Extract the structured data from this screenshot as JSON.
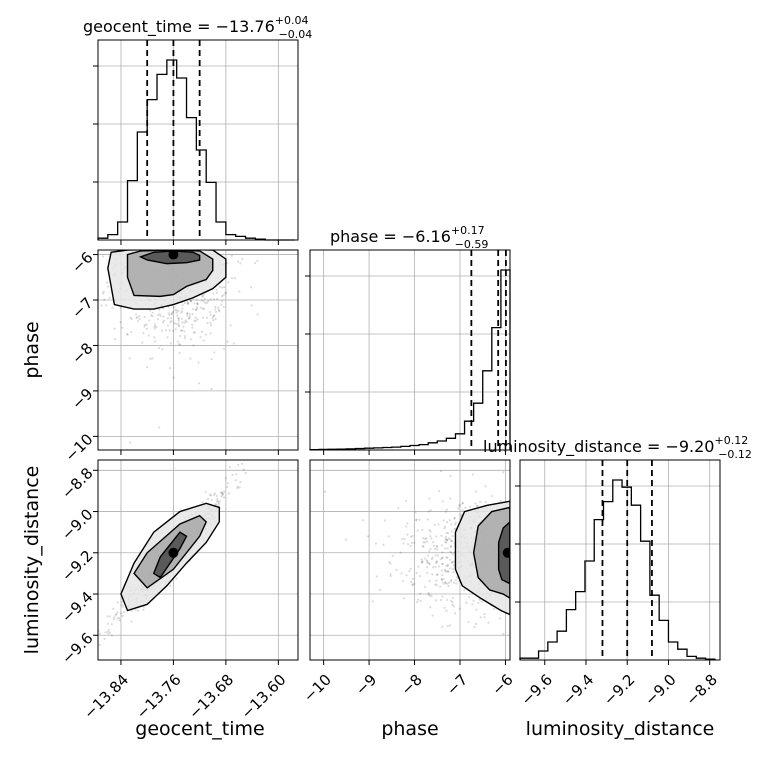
{
  "chart_data": {
    "type": "corner",
    "parameters": [
      "geocent_time",
      "phase",
      "luminosity_distance"
    ],
    "titles": [
      {
        "param": "geocent_time",
        "prefix": "geocent_time = ",
        "value": "−13.76",
        "plus": "+0.04",
        "minus": "−0.04"
      },
      {
        "param": "phase",
        "prefix": "phase = ",
        "value": "−6.16",
        "plus": "+0.17",
        "minus": "−0.59"
      },
      {
        "param": "luminosity_distance",
        "prefix": "luminosity_distance = ",
        "value": "−9.20",
        "plus": "+0.12",
        "minus": "−0.12"
      }
    ],
    "axes": {
      "geocent_time": {
        "lim": [
          -13.875,
          -13.57
        ],
        "ticks": [
          -13.84,
          -13.76,
          -13.68,
          -13.6
        ],
        "tick_labels": [
          "−13.84",
          "−13.76",
          "−13.68",
          "−13.60"
        ]
      },
      "phase": {
        "lim": [
          -10.3,
          -5.9
        ],
        "ticks": [
          -10,
          -9,
          -8,
          -7,
          -6
        ],
        "tick_labels": [
          "−10",
          "−9",
          "−8",
          "−7",
          "−6"
        ]
      },
      "luminosity_distance": {
        "lim": [
          -9.72,
          -8.75
        ],
        "ticks": [
          -9.6,
          -9.4,
          -9.2,
          -9.0,
          -8.8
        ],
        "tick_labels": [
          "−9.6",
          "−9.4",
          "−9.2",
          "−9.0",
          "−8.8"
        ]
      }
    },
    "histograms": {
      "geocent_time": {
        "edges": [
          -13.875,
          -13.86,
          -13.845,
          -13.83,
          -13.815,
          -13.8,
          -13.785,
          -13.77,
          -13.755,
          -13.74,
          -13.725,
          -13.71,
          -13.695,
          -13.68,
          -13.665,
          -13.65,
          -13.635,
          -13.62,
          -13.605,
          -13.59,
          -13.575
        ],
        "counts": [
          0.01,
          0.03,
          0.1,
          0.33,
          0.6,
          0.78,
          0.92,
          1.0,
          0.9,
          0.68,
          0.5,
          0.32,
          0.1,
          0.03,
          0.02,
          0.01,
          0.005,
          0,
          0,
          0
        ],
        "quantiles": [
          -13.8,
          -13.76,
          -13.72
        ]
      },
      "phase": {
        "edges": [
          -10.3,
          -10.1,
          -9.9,
          -9.7,
          -9.5,
          -9.3,
          -9.1,
          -8.9,
          -8.7,
          -8.5,
          -8.3,
          -8.1,
          -7.9,
          -7.7,
          -7.5,
          -7.3,
          -7.1,
          -6.9,
          -6.7,
          -6.5,
          -6.3,
          -6.1,
          -5.9
        ],
        "counts": [
          0.002,
          0.003,
          0.004,
          0.005,
          0.006,
          0.008,
          0.01,
          0.012,
          0.014,
          0.016,
          0.02,
          0.025,
          0.03,
          0.04,
          0.05,
          0.065,
          0.09,
          0.16,
          0.26,
          0.44,
          0.68,
          1.0
        ],
        "quantiles": [
          -6.75,
          -6.16,
          -5.99
        ]
      },
      "luminosity_distance": {
        "edges": [
          -9.72,
          -9.675,
          -9.63,
          -9.585,
          -9.54,
          -9.495,
          -9.45,
          -9.405,
          -9.36,
          -9.315,
          -9.27,
          -9.225,
          -9.18,
          -9.135,
          -9.09,
          -9.045,
          -9.0,
          -8.955,
          -8.91,
          -8.865,
          -8.82,
          -8.775
        ],
        "counts": [
          0.01,
          0.01,
          0.05,
          0.1,
          0.16,
          0.28,
          0.38,
          0.55,
          0.78,
          0.88,
          1.0,
          0.96,
          0.86,
          0.66,
          0.36,
          0.22,
          0.1,
          0.06,
          0.02,
          0.01,
          0.005
        ],
        "quantiles": [
          -9.32,
          -9.2,
          -9.08
        ]
      }
    },
    "contours_2d": {
      "geocent_time|phase": {
        "density_peak": [
          -13.76,
          -6.0
        ],
        "levels": [
          {
            "x": [
              -13.81,
              -13.8,
              -13.77,
              -13.74,
              -13.72,
              -13.72,
              -13.73,
              -13.76,
              -13.79,
              -13.81
            ],
            "y": [
              -6.05,
              -6.12,
              -6.2,
              -6.18,
              -6.12,
              -6.02,
              -5.95,
              -5.92,
              -5.95,
              -6.05
            ]
          },
          {
            "x": [
              -13.83,
              -13.83,
              -13.82,
              -13.78,
              -13.76,
              -13.74,
              -13.71,
              -13.7,
              -13.7,
              -13.72,
              -13.76,
              -13.81,
              -13.83
            ],
            "y": [
              -6.0,
              -6.5,
              -6.9,
              -6.92,
              -6.88,
              -6.7,
              -6.55,
              -6.35,
              -6.1,
              -5.92,
              -5.9,
              -5.92,
              -6.0
            ]
          },
          {
            "x": [
              -13.855,
              -13.86,
              -13.85,
              -13.82,
              -13.79,
              -13.76,
              -13.73,
              -13.7,
              -13.68,
              -13.68,
              -13.7,
              -13.76,
              -13.83,
              -13.855
            ],
            "y": [
              -5.95,
              -6.3,
              -7.1,
              -7.2,
              -7.2,
              -7.1,
              -6.95,
              -6.75,
              -6.5,
              -6.1,
              -5.9,
              -5.88,
              -5.9,
              -5.95
            ]
          }
        ]
      },
      "geocent_time|luminosity_distance": {
        "density_peak": [
          -13.76,
          -9.2
        ],
        "levels": [
          {
            "x": [
              -13.79,
              -13.78,
              -13.75,
              -13.74,
              -13.75,
              -13.78
            ],
            "y": [
              -9.3,
              -9.32,
              -9.18,
              -9.12,
              -9.1,
              -9.22
            ]
          },
          {
            "x": [
              -13.82,
              -13.8,
              -13.76,
              -13.72,
              -13.71,
              -13.72,
              -13.75,
              -13.8,
              -13.82
            ],
            "y": [
              -9.3,
              -9.37,
              -9.28,
              -9.12,
              -9.05,
              -9.02,
              -9.06,
              -9.2,
              -9.3
            ]
          },
          {
            "x": [
              -13.84,
              -13.83,
              -13.8,
              -13.77,
              -13.74,
              -13.71,
              -13.69,
              -13.69,
              -13.71,
              -13.75,
              -13.79,
              -13.82,
              -13.84
            ],
            "y": [
              -9.4,
              -9.48,
              -9.45,
              -9.36,
              -9.25,
              -9.15,
              -9.05,
              -8.98,
              -8.96,
              -9.0,
              -9.1,
              -9.25,
              -9.4
            ]
          }
        ]
      },
      "phase|luminosity_distance": {
        "density_peak": [
          -5.95,
          -9.2
        ],
        "levels": [
          {
            "x": [
              -5.9,
              -6.05,
              -6.15,
              -6.15,
              -6.08,
              -5.9
            ],
            "y": [
              -9.05,
              -9.08,
              -9.15,
              -9.28,
              -9.33,
              -9.35
            ]
          },
          {
            "x": [
              -5.9,
              -6.3,
              -6.6,
              -6.7,
              -6.6,
              -6.35,
              -6.05,
              -5.9
            ],
            "y": [
              -8.98,
              -9.0,
              -9.07,
              -9.2,
              -9.32,
              -9.38,
              -9.4,
              -9.42
            ]
          },
          {
            "x": [
              -5.9,
              -6.4,
              -6.9,
              -7.1,
              -7.1,
              -6.95,
              -6.55,
              -6.1,
              -5.9
            ],
            "y": [
              -8.95,
              -8.97,
              -9.0,
              -9.1,
              -9.28,
              -9.36,
              -9.42,
              -9.48,
              -9.5
            ]
          }
        ]
      }
    },
    "grid": true
  }
}
